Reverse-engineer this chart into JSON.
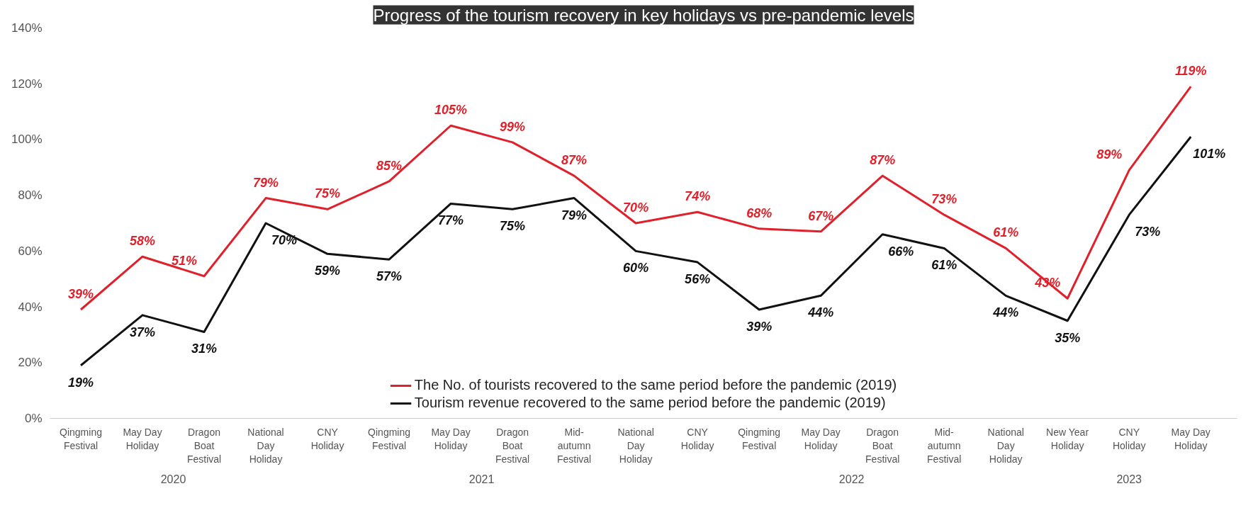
{
  "chart_data": {
    "type": "line",
    "title": "Progress of the tourism recovery in key holidays vs pre-pandemic levels",
    "categories": [
      [
        "2020",
        "Qingming Festival"
      ],
      "May Day Holiday",
      "Dragon Boat Festival",
      "National Day Holiday",
      [
        "2021",
        "CNY Holiday"
      ],
      "Qingming Festival",
      "May Day Holiday",
      "Dragon Boat Festival",
      "Mid-autumn Festival",
      "National Day Holiday",
      [
        "2022",
        "CNY Holiday"
      ],
      "Qingming Festival",
      "May Day Holiday",
      "Dragon Boat Festival",
      "Mid-autumn Festival",
      "National Day Holiday",
      [
        "2023",
        "New Year Holiday"
      ],
      "CNY Holiday",
      "May Day Holiday"
    ],
    "series": [
      {
        "name": "The No. of tourists recovered to the same period before the pandemic (2019)",
        "color": "#e0202a",
        "values": [
          39,
          58,
          51,
          79,
          75,
          85,
          105,
          99,
          87,
          70,
          74,
          68,
          67,
          87,
          73,
          61,
          43,
          89,
          119
        ],
        "value_labels": [
          "39%",
          "58%",
          "51%",
          "79%",
          "75%",
          "85%",
          "105%",
          "99%",
          "87%",
          "70%",
          "74%",
          "68%",
          "67%",
          "87%",
          "73%",
          "61%",
          "43%",
          "89%",
          "119%"
        ]
      },
      {
        "name": "Tourism revenue recovered to the same period before the pandemic (2019)",
        "color": "#111111",
        "values": [
          19,
          37,
          31,
          70,
          59,
          57,
          77,
          75,
          79,
          60,
          56,
          39,
          44,
          66,
          61,
          44,
          35,
          73,
          101
        ],
        "value_labels": [
          "19%",
          "37%",
          "31%",
          "70%",
          "59%",
          "57%",
          "77%",
          "75%",
          "79%",
          "60%",
          "56%",
          "39%",
          "44%",
          "66%",
          "61%",
          "44%",
          "35%",
          "73%",
          "101%"
        ]
      }
    ],
    "ylim": [
      0,
      140
    ],
    "yticks": [
      {
        "value": 0,
        "label": "0%"
      },
      {
        "value": 20,
        "label": "20%"
      },
      {
        "value": 40,
        "label": "40%"
      },
      {
        "value": 60,
        "label": "60%"
      },
      {
        "value": 80,
        "label": "80%"
      },
      {
        "value": 100,
        "label": "100%"
      },
      {
        "value": 120,
        "label": "120%"
      },
      {
        "value": 140,
        "label": "140%"
      }
    ],
    "legend": "bottom",
    "grid": false,
    "marker": "none",
    "line_style": "solid"
  }
}
